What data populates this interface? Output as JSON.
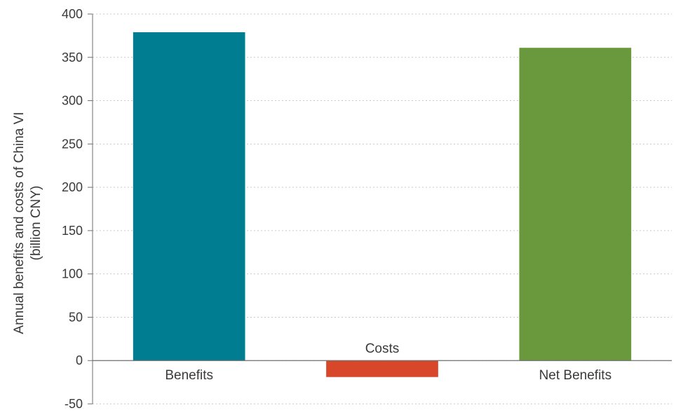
{
  "chart_data": {
    "type": "bar",
    "categories": [
      "Benefits",
      "Costs",
      "Net Benefits"
    ],
    "values": [
      379,
      -19,
      361
    ],
    "bar_colors": [
      "#007d91",
      "#d9472b",
      "#6a983c"
    ],
    "ylabel_lines": [
      "Annual benefits and costs of China VI",
      "(billion CNY)"
    ],
    "ylim": [
      -50,
      400
    ],
    "yticks": [
      -50,
      0,
      50,
      100,
      150,
      200,
      250,
      300,
      350,
      400
    ],
    "ytick_labels": [
      "-50",
      "0",
      "50",
      "100",
      "150",
      "200",
      "250",
      "300",
      "350",
      "400"
    ],
    "grid": true,
    "grid_color": "#c9c9c9",
    "axis_color": "#6f6f6f",
    "legend": "none"
  }
}
